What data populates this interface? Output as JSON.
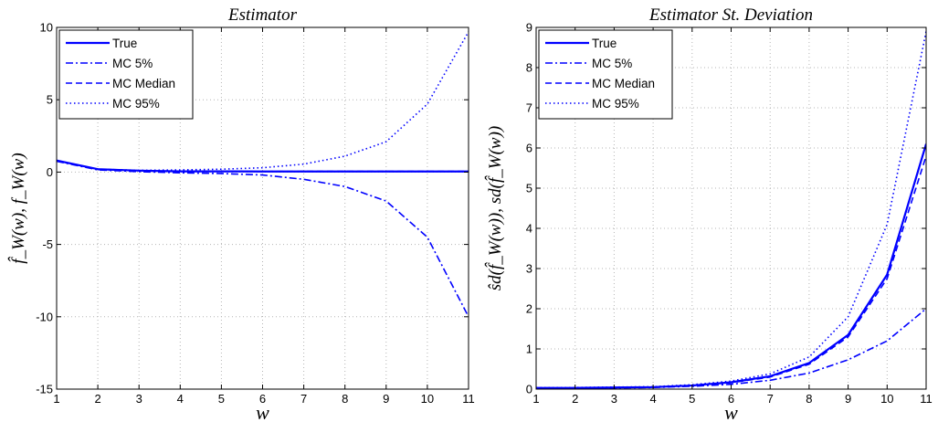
{
  "chart_data": [
    {
      "type": "line",
      "title": "Estimator",
      "xlabel": "w",
      "ylabel": "f̂_W(w), f_W(w)",
      "xlim": [
        1,
        11
      ],
      "ylim": [
        -15,
        10
      ],
      "xticks": [
        "1",
        "2",
        "3",
        "4",
        "5",
        "6",
        "7",
        "8",
        "9",
        "10",
        "11"
      ],
      "yticks": [
        "-15",
        "-10",
        "-5",
        "0",
        "5",
        "10"
      ],
      "grid": true,
      "legend_position": "top-left",
      "x": [
        1,
        2,
        3,
        4,
        5,
        6,
        7,
        8,
        9,
        10,
        11
      ],
      "series": [
        {
          "name": "True",
          "style": "solid",
          "values": [
            0.8,
            0.2,
            0.1,
            0.05,
            0.05,
            0.04,
            0.04,
            0.04,
            0.04,
            0.04,
            0.04
          ]
        },
        {
          "name": "MC 5%",
          "style": "dashdot",
          "values": [
            0.75,
            0.15,
            0.03,
            -0.05,
            -0.1,
            -0.2,
            -0.5,
            -1.0,
            -2.0,
            -4.5,
            -10.0
          ]
        },
        {
          "name": "MC Median",
          "style": "dashed",
          "values": [
            0.8,
            0.2,
            0.1,
            0.05,
            0.05,
            0.04,
            0.05,
            0.05,
            0.05,
            0.05,
            0.05
          ]
        },
        {
          "name": "MC 95%",
          "style": "dotted",
          "values": [
            0.8,
            0.2,
            0.12,
            0.15,
            0.2,
            0.3,
            0.55,
            1.1,
            2.1,
            4.7,
            9.7
          ]
        }
      ]
    },
    {
      "type": "line",
      "title": "Estimator St. Deviation",
      "xlabel": "w",
      "ylabel": "ŝd(f̂_W(w)), sd(f̂_W(w))",
      "xlim": [
        1,
        11
      ],
      "ylim": [
        0,
        9
      ],
      "xticks": [
        "1",
        "2",
        "3",
        "4",
        "5",
        "6",
        "7",
        "8",
        "9",
        "10",
        "11"
      ],
      "yticks": [
        "0",
        "1",
        "2",
        "3",
        "4",
        "5",
        "6",
        "7",
        "8",
        "9"
      ],
      "grid": true,
      "legend_position": "top-left",
      "x": [
        1,
        2,
        3,
        4,
        5,
        6,
        7,
        8,
        9,
        10,
        11
      ],
      "series": [
        {
          "name": "True",
          "style": "solid",
          "values": [
            0.03,
            0.03,
            0.04,
            0.05,
            0.09,
            0.17,
            0.32,
            0.65,
            1.35,
            2.85,
            6.1
          ]
        },
        {
          "name": "MC 5%",
          "style": "dashdot",
          "values": [
            0.02,
            0.02,
            0.03,
            0.04,
            0.07,
            0.12,
            0.22,
            0.4,
            0.73,
            1.2,
            2.0
          ]
        },
        {
          "name": "MC Median",
          "style": "dashed",
          "values": [
            0.03,
            0.03,
            0.04,
            0.05,
            0.09,
            0.16,
            0.3,
            0.62,
            1.3,
            2.75,
            5.8
          ]
        },
        {
          "name": "MC 95%",
          "style": "dotted",
          "values": [
            0.04,
            0.04,
            0.05,
            0.06,
            0.11,
            0.2,
            0.38,
            0.8,
            1.8,
            4.1,
            8.9
          ]
        }
      ]
    }
  ],
  "colors": {
    "line": "#0000ff",
    "grid": "#b4b4b4",
    "axis": "#000000"
  }
}
